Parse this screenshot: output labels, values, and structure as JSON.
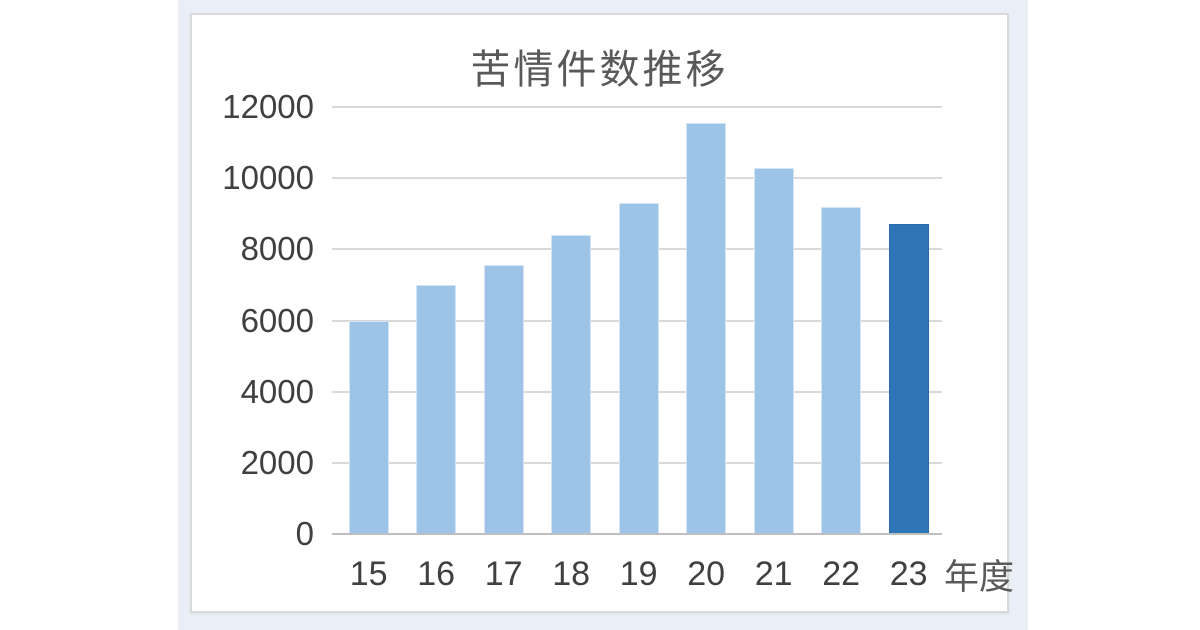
{
  "page": {
    "background_color": "#ffffff",
    "card_background_color": "#e9eef7",
    "chart_border_color": "#d9d9d9"
  },
  "chart_data": {
    "type": "bar",
    "title": "苦情件数推移",
    "categories": [
      "15",
      "16",
      "17",
      "18",
      "19",
      "20",
      "21",
      "22",
      "23"
    ],
    "values": [
      6000,
      7000,
      7550,
      8400,
      9300,
      11550,
      10300,
      9200,
      8700
    ],
    "xlabel": "年度",
    "ylabel": "",
    "ylim": [
      0,
      12000
    ],
    "yticks": [
      0,
      2000,
      4000,
      6000,
      8000,
      10000,
      12000
    ],
    "grid": true,
    "legend": "none",
    "bar_color": "#9dc3e6",
    "highlight_index": 8,
    "highlight_color": "#2e75b6",
    "gridline_color": "#d9d9d9",
    "axis_line_color": "#bfbfbf",
    "title_color": "#595959",
    "tick_label_color": "#404040"
  }
}
